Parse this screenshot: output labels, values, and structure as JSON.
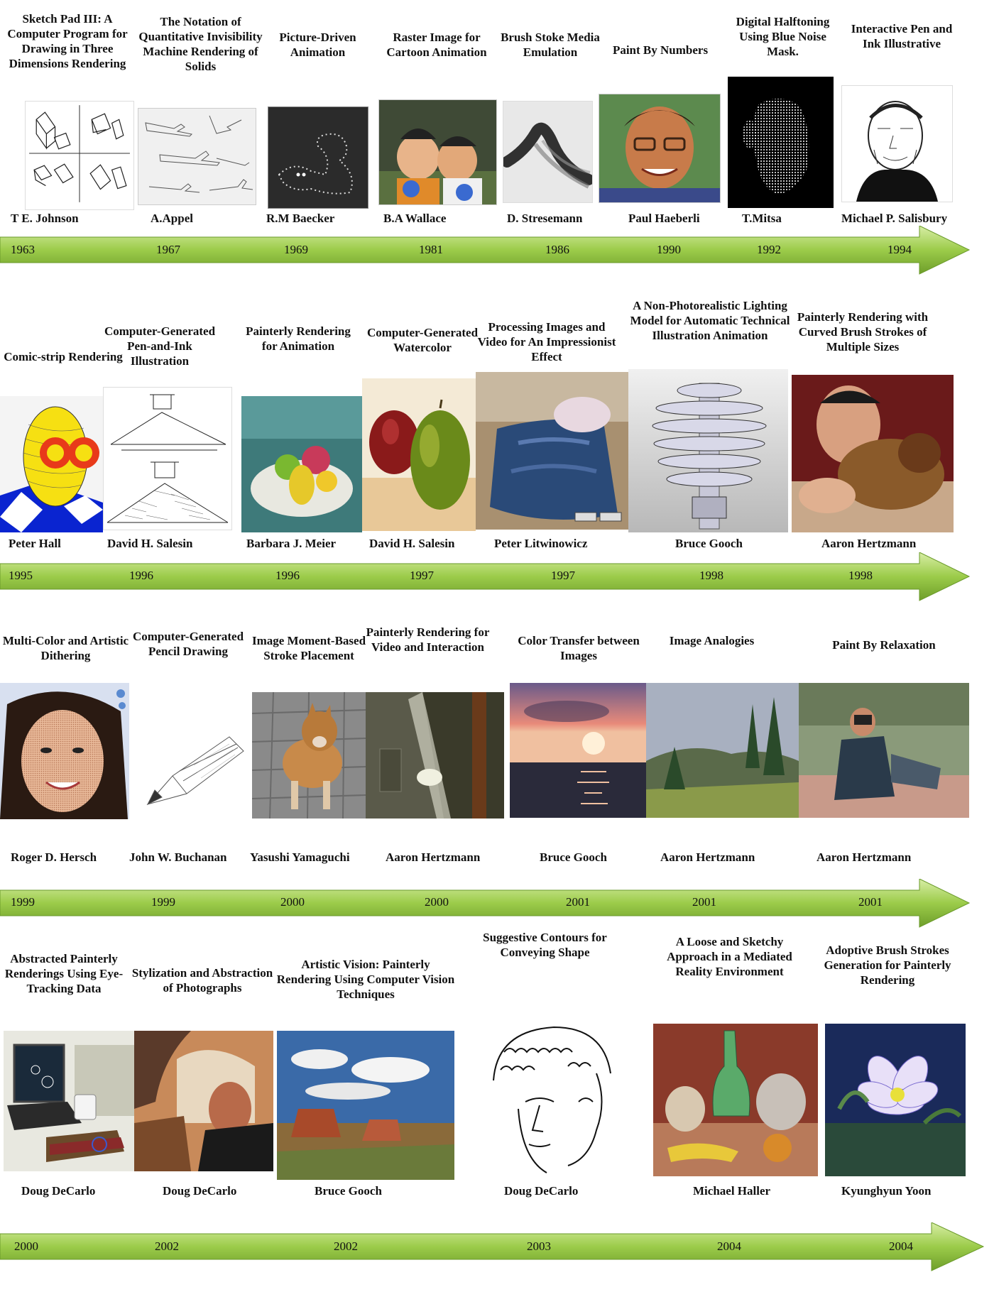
{
  "rows": [
    {
      "entries": [
        {
          "title": "Sketch Pad III: A Computer Program for Drawing in Three Dimensions Rendering",
          "author": "T E. Johnson",
          "year": "1963",
          "image": "wireframe-cubes"
        },
        {
          "title": "The Notation of Quantitative Invisibility Machine Rendering of Solids",
          "author": "A.Appel",
          "year": "1967",
          "image": "airplane-sketches"
        },
        {
          "title": "Picture-Driven Animation",
          "author": "R.M Baecker",
          "year": "1969",
          "image": "dotted-curve"
        },
        {
          "title": "Raster Image for Cartoon Animation",
          "author": "B.A Wallace",
          "year": "1981",
          "image": "cartoon-characters"
        },
        {
          "title": "Brush Stoke Media Emulation",
          "author": "D. Stresemann",
          "year": "1986",
          "image": "brush-stroke"
        },
        {
          "title": "Paint By Numbers",
          "author": "Paul Haeberli",
          "year": "1990",
          "image": "painted-portrait"
        },
        {
          "title": "Digital Halftoning Using Blue Noise Mask.",
          "author": "T.Mitsa",
          "year": "1992",
          "image": "halftone-face"
        },
        {
          "title": "Interactive Pen and Ink Illustrative",
          "author": "Michael P. Salisbury",
          "year": "1994",
          "image": "ink-portrait"
        }
      ]
    },
    {
      "entries": [
        {
          "title": "Comic-strip Rendering",
          "author": "Peter Hall",
          "year": "1995",
          "image": "comic-egg"
        },
        {
          "title": "Computer-Generated Pen-and-Ink Illustration",
          "author": "David H. Salesin",
          "year": "1996",
          "image": "ink-house"
        },
        {
          "title": "Painterly Rendering for Animation",
          "author": "Barbara J. Meier",
          "year": "1996",
          "image": "painted-fruit"
        },
        {
          "title": "Computer-Generated Watercolor",
          "author": "David H. Salesin",
          "year": "1997",
          "image": "watercolor-fruit"
        },
        {
          "title": "Processing Images and Video for An Impressionist Effect",
          "author": "Peter Litwinowicz",
          "year": "1997",
          "image": "impressionist-scene"
        },
        {
          "title": "A Non-Photorealistic Lighting Model for Automatic Technical Illustration Animation",
          "author": "Bruce Gooch",
          "year": "1998",
          "image": "technical-spring"
        },
        {
          "title": "Painterly Rendering with Curved Brush Strokes of Multiple Sizes",
          "author": "Aaron Hertzmann",
          "year": "1998",
          "image": "painted-dog"
        }
      ]
    },
    {
      "entries": [
        {
          "title": "Multi-Color and Artistic Dithering",
          "author": "Roger D. Hersch",
          "year": "1999",
          "image": "dithered-portrait"
        },
        {
          "title": "Computer-Generated Pencil Drawing",
          "author": "John W. Buchanan",
          "year": "1999",
          "image": "pencil-drawing"
        },
        {
          "title": "Image Moment-Based Stroke Placement",
          "author": "Yasushi Yamaguchi",
          "year": "2000",
          "image": "stroke-dog"
        },
        {
          "title": "Painterly Rendering for Video and Interaction",
          "author": "Aaron Hertzmann",
          "year": "2000",
          "image": "painted-subway"
        },
        {
          "title": "Color Transfer between Images",
          "author": "Bruce Gooch",
          "year": "2001",
          "image": "sunset-sea"
        },
        {
          "title": "Image Analogies",
          "author": "Aaron Hertzmann",
          "year": "2001",
          "image": "painted-landscape"
        },
        {
          "title": "Paint By Relaxation",
          "author": "Aaron Hertzmann",
          "year": "2001",
          "image": "photographer"
        }
      ]
    },
    {
      "entries": [
        {
          "title": "Abstracted Painterly Renderings Using Eye-Tracking Data",
          "author": "Doug DeCarlo",
          "year": "2000",
          "image": "eyetracking-laptop"
        },
        {
          "title": "Stylization and Abstraction of Photographs",
          "author": "Doug DeCarlo",
          "year": "2002",
          "image": "abstract-man"
        },
        {
          "title": "Artistic Vision: Painterly Rendering Using Computer Vision Techniques",
          "author": "Bruce Gooch",
          "year": "2002",
          "image": "painted-canyon"
        },
        {
          "title": "Suggestive Contours for Conveying Shape",
          "author": "Doug DeCarlo",
          "year": "2003",
          "image": "contour-head"
        },
        {
          "title": "A Loose and Sketchy Approach in a Mediated Reality Environment",
          "author": "Michael Haller",
          "year": "2004",
          "image": "sketchy-bottle"
        },
        {
          "title": "Adoptive Brush Strokes Generation for Painterly Rendering",
          "author": "Kyunghyun Yoon",
          "year": "2004",
          "image": "painted-flower"
        }
      ]
    }
  ],
  "colors": {
    "arrow_light": "#c8e68a",
    "arrow_mid": "#9ccc4a",
    "arrow_dark": "#6e9e2a"
  }
}
